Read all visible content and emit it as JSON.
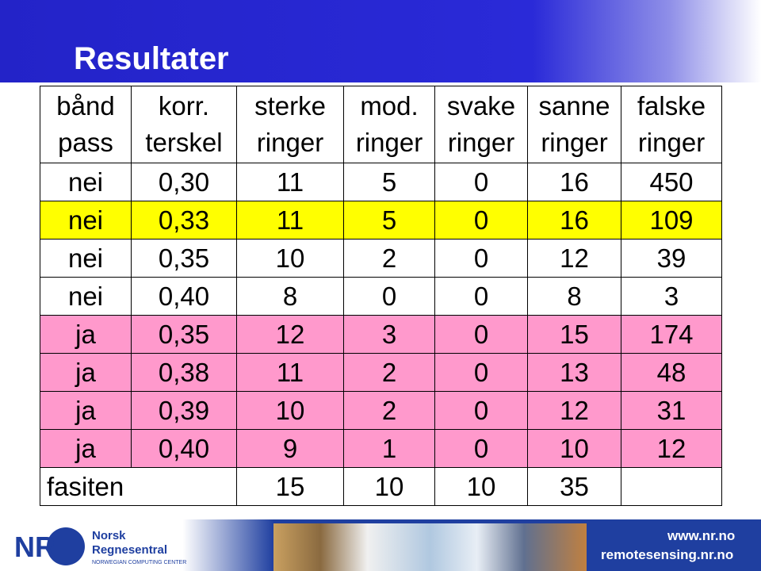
{
  "header": {
    "title": "Resultater"
  },
  "table": {
    "columns": [
      [
        "bånd",
        "pass"
      ],
      [
        "korr.",
        "terskel"
      ],
      [
        "sterke",
        "ringer"
      ],
      [
        "mod.",
        "ringer"
      ],
      [
        "svake",
        "ringer"
      ],
      [
        "sanne",
        "ringer"
      ],
      [
        "falske",
        "ringer"
      ]
    ],
    "rows": [
      [
        "nei",
        "0,30",
        "11",
        "5",
        "0",
        "16",
        "450"
      ],
      [
        "nei",
        "0,33",
        "11",
        "5",
        "0",
        "16",
        "109"
      ],
      [
        "nei",
        "0,35",
        "10",
        "2",
        "0",
        "12",
        "39"
      ],
      [
        "nei",
        "0,40",
        "8",
        "0",
        "0",
        "8",
        "3"
      ],
      [
        "ja",
        "0,35",
        "12",
        "3",
        "0",
        "15",
        "174"
      ],
      [
        "ja",
        "0,38",
        "11",
        "2",
        "0",
        "13",
        "48"
      ],
      [
        "ja",
        "0,39",
        "10",
        "2",
        "0",
        "12",
        "31"
      ],
      [
        "ja",
        "0,40",
        "9",
        "1",
        "0",
        "10",
        "12"
      ]
    ],
    "row_colors": [
      "#ffffff",
      "#ffff00",
      "#ffffff",
      "#ffffff",
      "#ff99cc",
      "#ff99cc",
      "#ff99cc",
      "#ff99cc"
    ],
    "total": {
      "label": "fasiten",
      "values": [
        "15",
        "10",
        "10",
        "35"
      ]
    }
  },
  "footer": {
    "logo_mark": "NR",
    "org_name_1": "Norsk",
    "org_name_2": "Regnesentral",
    "org_subtitle": "NORWEGIAN COMPUTING CENTER",
    "url_1": "www.nr.no",
    "url_2": "remotesensing.nr.no"
  }
}
